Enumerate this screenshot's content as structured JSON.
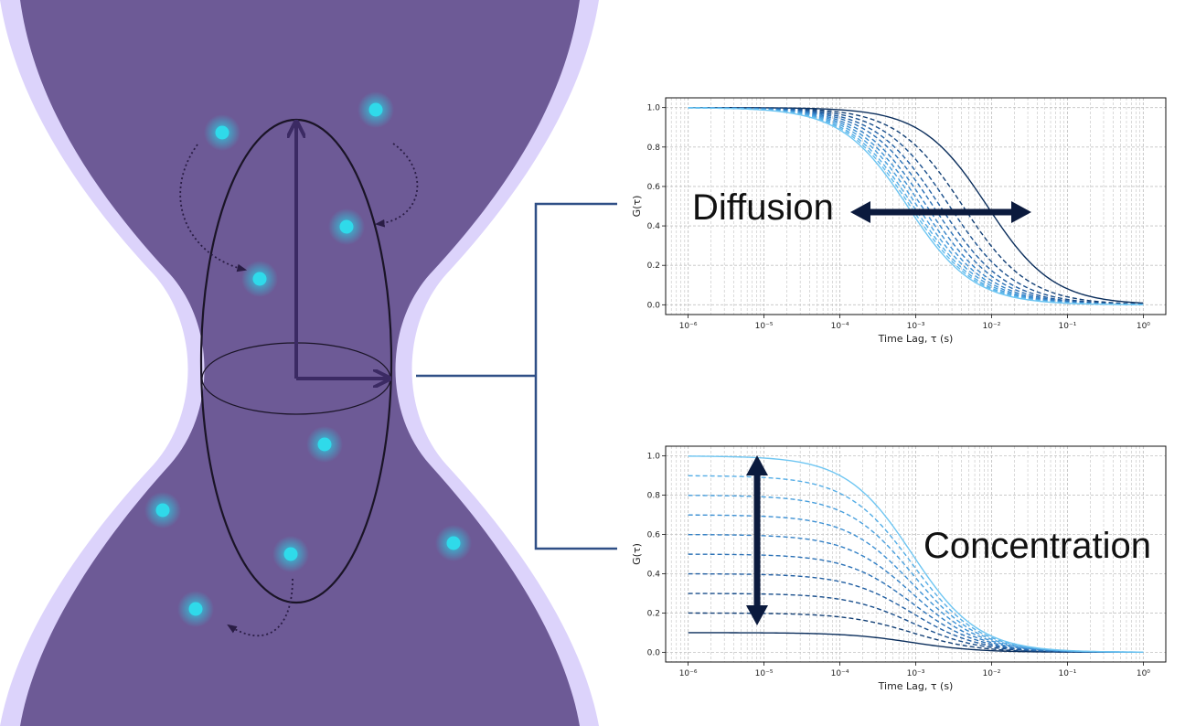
{
  "colors": {
    "beam_outer": "#dcd3fb",
    "beam_inner": "#6d5a96",
    "particle": "#29d3e4",
    "ellipse": "#1a1426",
    "vector": "#3b2a63",
    "connector": "#2f4f86",
    "annotation_arrow": "#0b1a3d",
    "grid": "#b5b5b5",
    "dark_curve": "#0b2e5c",
    "light_curve": "#6fc6f2"
  },
  "diffusion_annotation": "Diffusion",
  "concentration_annotation": "Concentration",
  "chart_data": [
    {
      "type": "line",
      "xlabel": "Time Lag, τ (s)",
      "ylabel": "G(τ)",
      "xscale": "log",
      "xlim": [
        1e-06,
        1
      ],
      "ylim": [
        0,
        1
      ],
      "xticks": [
        "10⁻⁶",
        "10⁻⁵",
        "10⁻⁴",
        "10⁻³",
        "10⁻²",
        "10⁻¹",
        "10⁰"
      ],
      "yticks": [
        "0.0",
        "0.2",
        "0.4",
        "0.6",
        "0.8",
        "1.0"
      ],
      "grid": true,
      "series": [
        {
          "half_decay_tau": 0.0088,
          "amplitude": 1.0,
          "style": "solid",
          "color": "#0b2e5c"
        },
        {
          "half_decay_tau": 0.0042,
          "amplitude": 1.0,
          "style": "dashed",
          "color": "#123f75"
        },
        {
          "half_decay_tau": 0.0028,
          "amplitude": 1.0,
          "style": "dashed",
          "color": "#1a4f8c"
        },
        {
          "half_decay_tau": 0.0021,
          "amplitude": 1.0,
          "style": "dashed",
          "color": "#225fa2"
        },
        {
          "half_decay_tau": 0.0017,
          "amplitude": 1.0,
          "style": "dashed",
          "color": "#2a70b5"
        },
        {
          "half_decay_tau": 0.0014,
          "amplitude": 1.0,
          "style": "dashed",
          "color": "#3380c5"
        },
        {
          "half_decay_tau": 0.0012,
          "amplitude": 1.0,
          "style": "dashed",
          "color": "#3d90d3"
        },
        {
          "half_decay_tau": 0.00105,
          "amplitude": 1.0,
          "style": "dashed",
          "color": "#489fdd"
        },
        {
          "half_decay_tau": 0.00093,
          "amplitude": 1.0,
          "style": "dashed",
          "color": "#54ade6"
        },
        {
          "half_decay_tau": 0.00085,
          "amplitude": 1.0,
          "style": "dashed",
          "color": "#60bbed"
        },
        {
          "half_decay_tau": 0.00078,
          "amplitude": 1.0,
          "style": "solid",
          "color": "#6fc6f2"
        }
      ]
    },
    {
      "type": "line",
      "xlabel": "Time Lag, τ (s)",
      "ylabel": "G(τ)",
      "xscale": "log",
      "xlim": [
        1e-06,
        1
      ],
      "ylim": [
        0,
        1
      ],
      "xticks": [
        "10⁻⁶",
        "10⁻⁵",
        "10⁻⁴",
        "10⁻³",
        "10⁻²",
        "10⁻¹",
        "10⁰"
      ],
      "yticks": [
        "0.0",
        "0.2",
        "0.4",
        "0.6",
        "0.8",
        "1.0"
      ],
      "grid": true,
      "series": [
        {
          "half_decay_tau": 0.0009,
          "amplitude": 0.1,
          "style": "solid",
          "color": "#0b2e5c"
        },
        {
          "half_decay_tau": 0.0009,
          "amplitude": 0.2,
          "style": "dashed",
          "color": "#123f75"
        },
        {
          "half_decay_tau": 0.0009,
          "amplitude": 0.3,
          "style": "dashed",
          "color": "#1a4f8c"
        },
        {
          "half_decay_tau": 0.0009,
          "amplitude": 0.4,
          "style": "dashed",
          "color": "#225fa2"
        },
        {
          "half_decay_tau": 0.0009,
          "amplitude": 0.5,
          "style": "dashed",
          "color": "#2a70b5"
        },
        {
          "half_decay_tau": 0.0009,
          "amplitude": 0.6,
          "style": "dashed",
          "color": "#3380c5"
        },
        {
          "half_decay_tau": 0.0009,
          "amplitude": 0.7,
          "style": "dashed",
          "color": "#3d90d3"
        },
        {
          "half_decay_tau": 0.0009,
          "amplitude": 0.8,
          "style": "dashed",
          "color": "#489fdd"
        },
        {
          "half_decay_tau": 0.0009,
          "amplitude": 0.9,
          "style": "dashed",
          "color": "#54ade6"
        },
        {
          "half_decay_tau": 0.0009,
          "amplitude": 1.0,
          "style": "solid",
          "color": "#6fc6f2"
        }
      ]
    }
  ]
}
